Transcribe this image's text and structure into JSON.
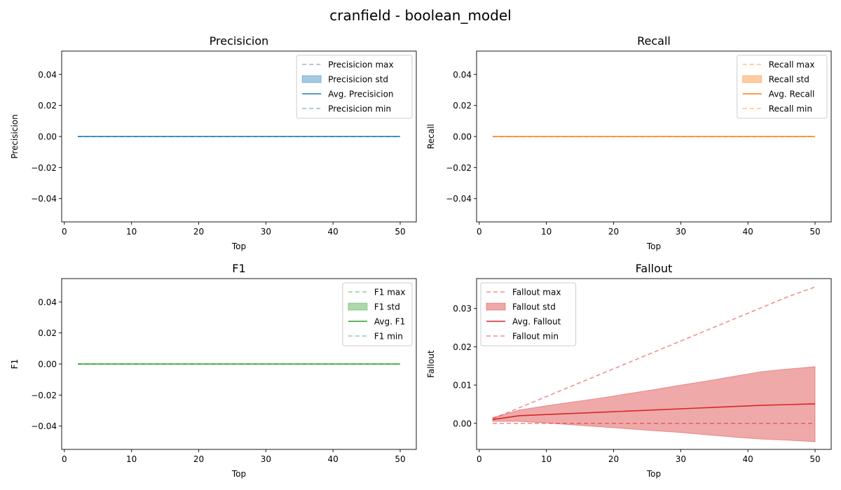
{
  "figure_title": "cranfield - boolean_model",
  "x_tick_labels": [
    "0",
    "10",
    "20",
    "30",
    "40",
    "50"
  ],
  "chart_data": [
    {
      "type": "line",
      "title": "Precisicion",
      "xlabel": "Top",
      "ylabel": "Precisicion",
      "color": "#1f77b4",
      "xlim": [
        -0.4,
        52.4
      ],
      "ylim": [
        -0.055,
        0.055
      ],
      "yticks": [
        -0.04,
        -0.02,
        0.0,
        0.02,
        0.04
      ],
      "ytick_labels": [
        "−0.04",
        "−0.02",
        "0.00",
        "0.02",
        "0.04"
      ],
      "legend_position": "top-right",
      "legend": [
        "Precisicion max",
        "Precisicion std",
        "Avg. Precisicion",
        "Precisicion min"
      ],
      "x": [
        2,
        50
      ],
      "series": [
        {
          "name": "Precisicion max",
          "values": [
            0,
            0
          ]
        },
        {
          "name": "Avg. Precisicion",
          "values": [
            0,
            0
          ]
        },
        {
          "name": "Precisicion min",
          "values": [
            0,
            0
          ]
        }
      ],
      "std_band": {
        "name": "Precisicion std",
        "upper": [
          0,
          0
        ],
        "lower": [
          0,
          0
        ]
      }
    },
    {
      "type": "line",
      "title": "Recall",
      "xlabel": "Top",
      "ylabel": "Recall",
      "color": "#ff7f0e",
      "xlim": [
        -0.4,
        52.4
      ],
      "ylim": [
        -0.055,
        0.055
      ],
      "yticks": [
        -0.04,
        -0.02,
        0.0,
        0.02,
        0.04
      ],
      "ytick_labels": [
        "−0.04",
        "−0.02",
        "0.00",
        "0.02",
        "0.04"
      ],
      "legend_position": "top-right",
      "legend": [
        "Recall max",
        "Recall std",
        "Avg. Recall",
        "Recall min"
      ],
      "x": [
        2,
        50
      ],
      "series": [
        {
          "name": "Recall max",
          "values": [
            0,
            0
          ]
        },
        {
          "name": "Avg. Recall",
          "values": [
            0,
            0
          ]
        },
        {
          "name": "Recall min",
          "values": [
            0,
            0
          ]
        }
      ],
      "std_band": {
        "name": "Recall std",
        "upper": [
          0,
          0
        ],
        "lower": [
          0,
          0
        ]
      }
    },
    {
      "type": "line",
      "title": "F1",
      "xlabel": "Top",
      "ylabel": "F1",
      "color": "#2ca02c",
      "xlim": [
        -0.4,
        52.4
      ],
      "ylim": [
        -0.055,
        0.055
      ],
      "yticks": [
        -0.04,
        -0.02,
        0.0,
        0.02,
        0.04
      ],
      "ytick_labels": [
        "−0.04",
        "−0.02",
        "0.00",
        "0.02",
        "0.04"
      ],
      "legend_position": "top-right",
      "legend": [
        "F1 max",
        "F1 std",
        "Avg. F1",
        "F1 min"
      ],
      "x": [
        2,
        50
      ],
      "series": [
        {
          "name": "F1 max",
          "values": [
            0,
            0
          ]
        },
        {
          "name": "Avg. F1",
          "values": [
            0,
            0
          ]
        },
        {
          "name": "F1 min",
          "values": [
            0,
            0
          ]
        }
      ],
      "std_band": {
        "name": "F1 std",
        "upper": [
          0,
          0
        ],
        "lower": [
          0,
          0
        ]
      }
    },
    {
      "type": "line",
      "title": "Fallout",
      "xlabel": "Top",
      "ylabel": "Fallout",
      "color": "#d62728",
      "xlim": [
        -0.4,
        52.4
      ],
      "ylim": [
        -0.0068,
        0.0378
      ],
      "yticks": [
        0.0,
        0.01,
        0.02,
        0.03
      ],
      "ytick_labels": [
        "0.00",
        "0.01",
        "0.02",
        "0.03"
      ],
      "legend_position": "top-left",
      "legend": [
        "Fallout max",
        "Fallout std",
        "Avg. Fallout",
        "Fallout min"
      ],
      "x": [
        2,
        6,
        10,
        14,
        18,
        22,
        26,
        30,
        34,
        38,
        42,
        46,
        50
      ],
      "series": [
        {
          "name": "Fallout max",
          "values": [
            0.0012,
            0.0041,
            0.007,
            0.0099,
            0.0128,
            0.0157,
            0.0186,
            0.0215,
            0.0244,
            0.0273,
            0.0302,
            0.0331,
            0.0356
          ]
        },
        {
          "name": "Avg. Fallout",
          "values": [
            0.001,
            0.002,
            0.0023,
            0.0026,
            0.0029,
            0.0032,
            0.0035,
            0.0038,
            0.0041,
            0.0044,
            0.0047,
            0.0049,
            0.0051
          ]
        },
        {
          "name": "Fallout min",
          "values": [
            0,
            0,
            0,
            0,
            0,
            0,
            0,
            0,
            0,
            0,
            0,
            0,
            0
          ]
        }
      ],
      "std_band": {
        "name": "Fallout std",
        "upper": [
          0.0015,
          0.0035,
          0.0046,
          0.0056,
          0.0066,
          0.0077,
          0.0088,
          0.01,
          0.0111,
          0.0123,
          0.0135,
          0.0142,
          0.0148
        ],
        "lower": [
          0.0005,
          0.0005,
          0.0001,
          -0.0004,
          -0.0009,
          -0.0014,
          -0.0019,
          -0.0024,
          -0.003,
          -0.0036,
          -0.0041,
          -0.0044,
          -0.0048
        ]
      }
    }
  ]
}
